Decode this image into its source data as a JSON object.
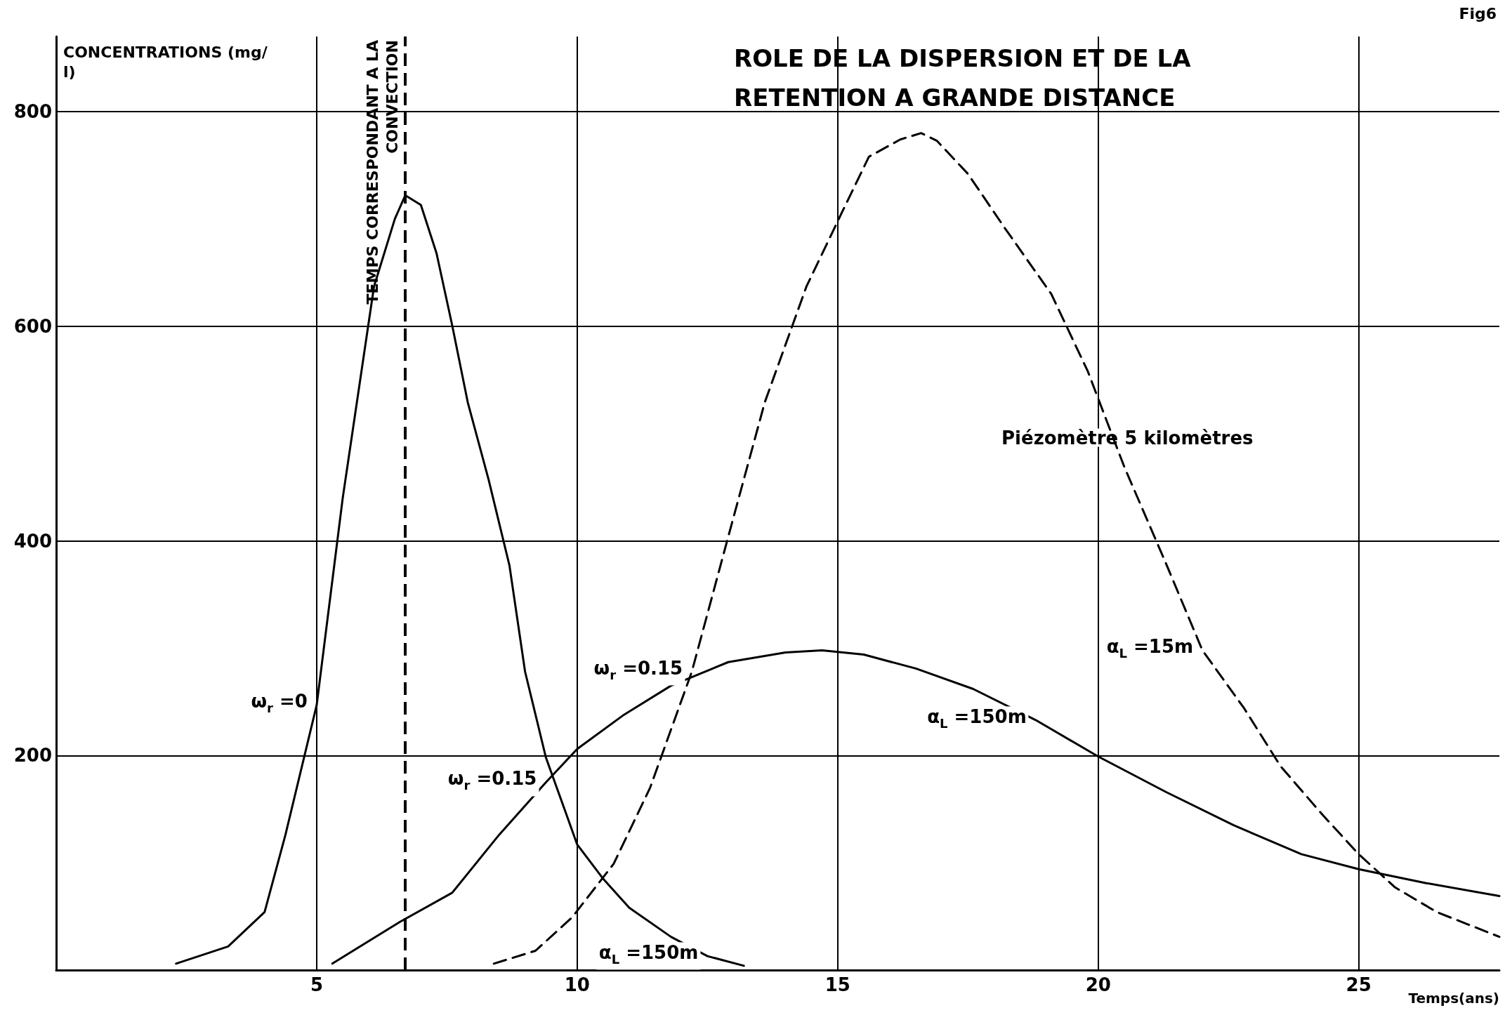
{
  "chart_data": {
    "type": "line",
    "title": "ROLE DE LA DISPERSION ET DE LA RETENTION A GRANDE DISTANCE",
    "xlabel": "Temps(ans)",
    "ylabel": "CONCENTRATIONS (mg/l)",
    "xlim": [
      0,
      27.7
    ],
    "ylim": [
      0,
      870
    ],
    "xticks": [
      5,
      10,
      15,
      20,
      25
    ],
    "yticks": [
      200,
      400,
      600,
      800
    ],
    "grid": true,
    "marker": "none",
    "series": [
      {
        "color": "#000000",
        "line_style": "solid",
        "x": [
          2.3,
          3.3,
          4.0,
          4.4,
          5.0,
          5.5,
          6.1,
          6.5,
          6.7,
          7.0,
          7.3,
          7.6,
          7.9,
          8.3,
          8.7,
          9.0,
          9.4,
          9.8,
          10.0,
          10.5,
          11.0,
          11.8,
          12.5,
          13.2
        ],
        "values": [
          6,
          22,
          54,
          126,
          247,
          440,
          637,
          700,
          722,
          713,
          668,
          601,
          529,
          457,
          377,
          278,
          198,
          144,
          117,
          85,
          58,
          31,
          13,
          4
        ]
      },
      {
        "color": "#000000",
        "line_style": "solid",
        "x": [
          5.3,
          6.6,
          7.6,
          8.5,
          9.4,
          10.0,
          10.9,
          11.8,
          12.9,
          14.0,
          14.7,
          15.5,
          16.5,
          17.6,
          18.8,
          20.0,
          21.3,
          22.6,
          23.9,
          25.0,
          26.3,
          27.7
        ],
        "values": [
          6,
          45,
          72,
          126,
          175,
          206,
          238,
          265,
          287,
          296,
          298,
          294,
          281,
          262,
          233,
          199,
          166,
          135,
          108,
          94,
          81,
          69
        ]
      },
      {
        "color": "#000000",
        "line_style": "dashed",
        "x": [
          8.4,
          9.2,
          9.9,
          10.7,
          11.4,
          12.2,
          12.9,
          13.6,
          14.4,
          15.1,
          15.6,
          16.2,
          16.6,
          16.9,
          17.5,
          18.2,
          19.1,
          19.8,
          20.5,
          21.3,
          22.0,
          22.8,
          23.5,
          24.3,
          25.0,
          25.7,
          26.5,
          27.7
        ],
        "values": [
          6,
          18,
          49,
          99,
          170,
          278,
          404,
          529,
          637,
          708,
          758,
          774,
          780,
          773,
          742,
          692,
          630,
          558,
          469,
          379,
          298,
          244,
          190,
          145,
          108,
          77,
          54,
          31
        ]
      }
    ],
    "ref_lines": [
      {
        "axis": "x",
        "value": 6.7,
        "label": "TEMPS CORRESPONDANT A LA CONVECTION",
        "line_style": "dashed",
        "color": "#000000"
      }
    ],
    "annotations": [
      {
        "text": "ω$_{r}$ =0",
        "x": 5.0,
        "y": 247
      },
      {
        "text": "ω$_{r}$ =0.15",
        "x": 9.4,
        "y": 175
      },
      {
        "text": "ω$_{r}$ =0.15",
        "x": 12.2,
        "y": 278
      },
      {
        "text": "α$_{L}$ =150m",
        "x": 12.5,
        "y": 13
      },
      {
        "text": "α$_{L}$ =150m",
        "x": 18.8,
        "y": 233
      },
      {
        "text": "α$_{L}$ =15m",
        "x": 22.0,
        "y": 298
      },
      "Fig6",
      "Piézomètre 5 kilomètres"
    ]
  }
}
